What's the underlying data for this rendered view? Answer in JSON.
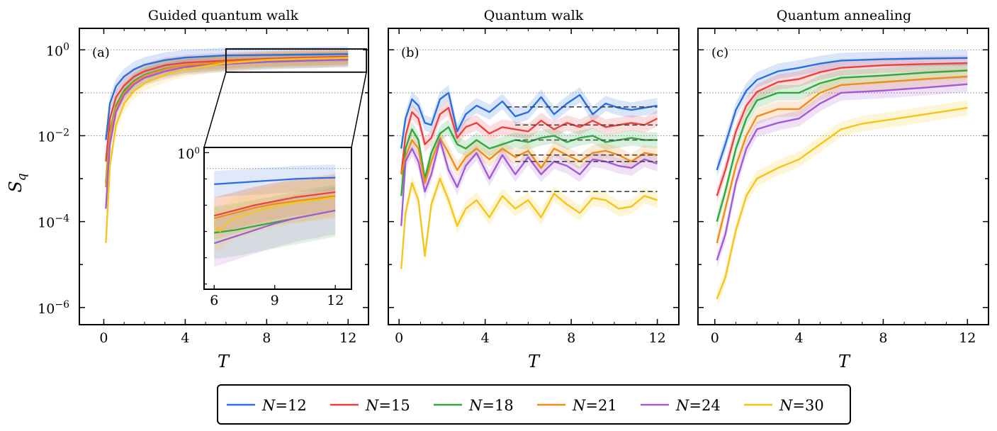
{
  "chart_data": [
    {
      "type": "line",
      "panel": "(a)",
      "title": "Guided quantum walk",
      "xlabel": "T",
      "ylabel": "S_q",
      "yscale": "log",
      "xlim": [
        -1.2,
        13
      ],
      "ylim_log10": [
        -6.4,
        0.5
      ],
      "xticks": [
        0,
        4,
        8,
        12
      ],
      "yticks": [
        {
          "base": "10",
          "exp": "0"
        },
        {
          "base": "10",
          "exp": "−2"
        },
        {
          "base": "10",
          "exp": "−4"
        },
        {
          "base": "10",
          "exp": "−6"
        }
      ],
      "reference_lines_log10": [
        0,
        -1,
        -2
      ],
      "series": [
        {
          "name": "N=12",
          "x": [
            0.1,
            0.3,
            0.6,
            1,
            1.5,
            2,
            3,
            4,
            6,
            8,
            10,
            12
          ],
          "log10y": [
            -2.1,
            -1.25,
            -0.85,
            -0.62,
            -0.45,
            -0.35,
            -0.24,
            -0.18,
            -0.13,
            -0.12,
            -0.11,
            -0.1
          ]
        },
        {
          "name": "N=15",
          "x": [
            0.1,
            0.3,
            0.6,
            1,
            1.5,
            2,
            3,
            4,
            6,
            8,
            10,
            12
          ],
          "log10y": [
            -2.6,
            -1.6,
            -1.1,
            -0.83,
            -0.62,
            -0.5,
            -0.36,
            -0.3,
            -0.25,
            -0.21,
            -0.18,
            -0.16
          ]
        },
        {
          "name": "N=18",
          "x": [
            0.1,
            0.3,
            0.6,
            1,
            1.5,
            2,
            3,
            4,
            6,
            8,
            10,
            12
          ],
          "log10y": [
            -3.1,
            -1.9,
            -1.3,
            -0.95,
            -0.72,
            -0.58,
            -0.44,
            -0.36,
            -0.3,
            -0.26,
            -0.24,
            -0.21
          ]
        },
        {
          "name": "N=21",
          "x": [
            0.1,
            0.3,
            0.6,
            1,
            1.5,
            2,
            3,
            4,
            6,
            8,
            10,
            12
          ],
          "log10y": [
            -3.2,
            -1.95,
            -1.35,
            -1.0,
            -0.75,
            -0.6,
            -0.45,
            -0.36,
            -0.28,
            -0.23,
            -0.2,
            -0.18
          ]
        },
        {
          "name": "N=24",
          "x": [
            0.1,
            0.3,
            0.6,
            1,
            1.5,
            2,
            3,
            4,
            6,
            8,
            10,
            12
          ],
          "log10y": [
            -3.7,
            -2.2,
            -1.45,
            -1.05,
            -0.8,
            -0.65,
            -0.5,
            -0.4,
            -0.33,
            -0.28,
            -0.25,
            -0.23
          ]
        },
        {
          "name": "N=30",
          "x": [
            0.1,
            0.3,
            0.6,
            1,
            1.5,
            2,
            3,
            4,
            6,
            8,
            10,
            12
          ],
          "log10y": [
            -4.5,
            -2.7,
            -1.75,
            -1.25,
            -0.95,
            -0.78,
            -0.58,
            -0.45,
            -0.31,
            -0.24,
            -0.21,
            -0.19
          ]
        }
      ],
      "inset": {
        "xlim": [
          5.5,
          12.8
        ],
        "ylim_log10": [
          -0.52,
          0.02
        ],
        "xticks": [
          6,
          9,
          12
        ],
        "ytick": {
          "base": "10",
          "exp": "0"
        },
        "series": [
          {
            "name": "N=12",
            "x": [
              6,
              7,
              8,
              9,
              10,
              11,
              12
            ],
            "log10y": [
              -0.12,
              -0.115,
              -0.11,
              -0.105,
              -0.1,
              -0.097,
              -0.095
            ]
          },
          {
            "name": "N=15",
            "x": [
              6,
              7,
              8,
              9,
              10,
              11,
              12
            ],
            "log10y": [
              -0.24,
              -0.22,
              -0.2,
              -0.185,
              -0.17,
              -0.16,
              -0.15
            ]
          },
          {
            "name": "N=18",
            "x": [
              6,
              6.5,
              7,
              8,
              9,
              10,
              11,
              12
            ],
            "log10y": [
              -0.305,
              -0.3,
              -0.295,
              -0.28,
              -0.265,
              -0.25,
              -0.235,
              -0.22
            ]
          },
          {
            "name": "N=21",
            "x": [
              6,
              7,
              8,
              9,
              10,
              11,
              12
            ],
            "log10y": [
              -0.25,
              -0.23,
              -0.21,
              -0.195,
              -0.185,
              -0.175,
              -0.165
            ]
          },
          {
            "name": "N=24",
            "x": [
              6,
              7,
              8,
              9,
              10,
              11,
              12
            ],
            "log10y": [
              -0.345,
              -0.32,
              -0.295,
              -0.27,
              -0.25,
              -0.235,
              -0.22
            ]
          },
          {
            "name": "N=30",
            "x": [
              6,
              6.3,
              6.6,
              7,
              8,
              9,
              10,
              11,
              12
            ],
            "log10y": [
              -0.28,
              -0.3,
              -0.27,
              -0.25,
              -0.225,
              -0.205,
              -0.19,
              -0.18,
              -0.17
            ]
          }
        ]
      }
    },
    {
      "type": "line",
      "panel": "(b)",
      "title": "Quantum walk",
      "xlabel": "T",
      "yscale": "log",
      "xlim": [
        -0.5,
        13
      ],
      "ylim_log10": [
        -6.4,
        0.5
      ],
      "xticks": [
        0,
        4,
        8,
        12
      ],
      "reference_lines_log10": [
        0,
        -1,
        -2
      ],
      "series": [
        {
          "name": "N=12",
          "x": [
            0.1,
            0.3,
            0.6,
            0.9,
            1.2,
            1.5,
            1.9,
            2.3,
            2.7,
            3.1,
            3.6,
            4.2,
            4.8,
            5.4,
            6,
            6.6,
            7.2,
            7.8,
            8.4,
            9,
            9.6,
            10.2,
            10.8,
            11.4,
            12
          ],
          "log10y": [
            -2.3,
            -1.6,
            -1.15,
            -1.3,
            -1.7,
            -1.75,
            -1.15,
            -1.0,
            -1.9,
            -1.5,
            -1.3,
            -1.45,
            -1.2,
            -1.55,
            -1.45,
            -1.1,
            -1.5,
            -1.25,
            -1.05,
            -1.5,
            -1.25,
            -1.35,
            -1.4,
            -1.35,
            -1.3
          ]
        },
        {
          "name": "N=15",
          "x": [
            0.1,
            0.3,
            0.6,
            0.9,
            1.2,
            1.5,
            1.9,
            2.3,
            2.7,
            3.1,
            3.6,
            4.2,
            4.8,
            5.4,
            6,
            6.6,
            7.2,
            7.8,
            8.4,
            9,
            9.6,
            10.2,
            10.8,
            11.4,
            12
          ],
          "log10y": [
            -2.9,
            -2.0,
            -1.45,
            -1.6,
            -2.2,
            -2.05,
            -1.5,
            -1.35,
            -2.05,
            -1.8,
            -1.7,
            -1.95,
            -1.8,
            -1.85,
            -1.9,
            -1.65,
            -1.85,
            -1.7,
            -1.8,
            -1.65,
            -1.8,
            -1.75,
            -1.7,
            -1.75,
            -1.6
          ]
        },
        {
          "name": "N=18",
          "x": [
            0.1,
            0.3,
            0.6,
            0.9,
            1.2,
            1.5,
            1.9,
            2.3,
            2.7,
            3.1,
            3.6,
            4.2,
            4.8,
            5.4,
            6,
            6.6,
            7.2,
            7.8,
            8.4,
            9,
            9.6,
            10.2,
            10.8,
            11.4,
            12
          ],
          "log10y": [
            -3.4,
            -2.3,
            -1.85,
            -2.1,
            -3.0,
            -2.4,
            -1.95,
            -1.8,
            -2.2,
            -2.3,
            -2.1,
            -2.3,
            -2.2,
            -2.1,
            -2.15,
            -2.05,
            -2.0,
            -2.15,
            -2.05,
            -2.0,
            -2.15,
            -2.1,
            -2.05,
            -2.1,
            -2.1
          ]
        },
        {
          "name": "N=21",
          "x": [
            0.1,
            0.3,
            0.6,
            0.9,
            1.2,
            1.5,
            1.9,
            2.3,
            2.7,
            3.1,
            3.6,
            4.2,
            4.8,
            5.4,
            6,
            6.6,
            7.2,
            7.8,
            8.4,
            9,
            9.6,
            10.2,
            10.8,
            11.4,
            12
          ],
          "log10y": [
            -2.9,
            -2.5,
            -2.1,
            -2.3,
            -3.1,
            -2.6,
            -2.05,
            -2.4,
            -2.8,
            -2.5,
            -2.3,
            -2.55,
            -2.3,
            -2.5,
            -2.35,
            -2.75,
            -2.3,
            -2.45,
            -2.6,
            -2.4,
            -2.35,
            -2.45,
            -2.6,
            -2.4,
            -2.45
          ]
        },
        {
          "name": "N=24",
          "x": [
            0.1,
            0.3,
            0.6,
            0.9,
            1.2,
            1.5,
            1.9,
            2.3,
            2.7,
            3.1,
            3.6,
            4.2,
            4.8,
            5.4,
            6,
            6.6,
            7.2,
            7.8,
            8.4,
            9,
            9.6,
            10.2,
            10.8,
            11.4,
            12
          ],
          "log10y": [
            -4.1,
            -2.6,
            -2.3,
            -2.6,
            -3.3,
            -2.9,
            -2.1,
            -2.8,
            -3.2,
            -2.7,
            -2.4,
            -3.0,
            -2.45,
            -2.9,
            -2.5,
            -2.9,
            -2.6,
            -2.7,
            -2.9,
            -2.55,
            -2.6,
            -2.7,
            -2.75,
            -2.55,
            -2.65
          ]
        },
        {
          "name": "N=30",
          "x": [
            0.1,
            0.3,
            0.6,
            0.9,
            1.2,
            1.5,
            1.9,
            2.3,
            2.7,
            3.1,
            3.6,
            4.2,
            4.8,
            5.4,
            6,
            6.6,
            7.2,
            7.8,
            8.4,
            9,
            9.6,
            10.2,
            10.8,
            11.4,
            12
          ],
          "log10y": [
            -5.1,
            -3.8,
            -3.1,
            -3.5,
            -4.8,
            -3.6,
            -3.0,
            -3.5,
            -4.1,
            -3.7,
            -3.5,
            -3.9,
            -3.4,
            -3.7,
            -3.5,
            -3.9,
            -3.35,
            -3.6,
            -3.8,
            -3.45,
            -3.5,
            -3.7,
            -3.65,
            -3.4,
            -3.5
          ]
        }
      ],
      "dashed_averages": [
        {
          "name": "N=12",
          "x0": 5,
          "x1": 12,
          "log10y": -1.33
        },
        {
          "name": "N=15",
          "x0": 5.4,
          "x1": 12,
          "log10y": -1.75
        },
        {
          "name": "N=18",
          "x0": 5.4,
          "x1": 12,
          "log10y": -2.1
        },
        {
          "name": "N=21",
          "x0": 5.4,
          "x1": 12,
          "log10y": -2.45
        },
        {
          "name": "N=24",
          "x0": 5.4,
          "x1": 12,
          "log10y": -2.6
        },
        {
          "name": "N=30",
          "x0": 5.4,
          "x1": 12,
          "log10y": -3.3
        }
      ]
    },
    {
      "type": "line",
      "panel": "(c)",
      "title": "Quantum annealing",
      "xlabel": "T",
      "yscale": "log",
      "xlim": [
        -0.8,
        13
      ],
      "ylim_log10": [
        -6.4,
        0.5
      ],
      "xticks": [
        0,
        4,
        8,
        12
      ],
      "reference_lines_log10": [
        0,
        -1,
        -2
      ],
      "series": [
        {
          "name": "N=12",
          "x": [
            0.1,
            0.5,
            1,
            1.5,
            2,
            3,
            4,
            5,
            6,
            8,
            10,
            12
          ],
          "log10y": [
            -2.8,
            -2.2,
            -1.4,
            -0.95,
            -0.7,
            -0.5,
            -0.42,
            -0.32,
            -0.25,
            -0.22,
            -0.2,
            -0.19
          ]
        },
        {
          "name": "N=15",
          "x": [
            0.1,
            0.5,
            1,
            1.5,
            2,
            3,
            4,
            5,
            6,
            8,
            10,
            12
          ],
          "log10y": [
            -3.4,
            -2.8,
            -1.9,
            -1.3,
            -0.98,
            -0.75,
            -0.68,
            -0.52,
            -0.42,
            -0.36,
            -0.33,
            -0.31
          ]
        },
        {
          "name": "N=18",
          "x": [
            0.1,
            0.5,
            1,
            1.5,
            2,
            3,
            4,
            5,
            6,
            8,
            10,
            12
          ],
          "log10y": [
            -4.0,
            -3.3,
            -2.3,
            -1.6,
            -1.18,
            -1.0,
            -1.0,
            -0.78,
            -0.65,
            -0.6,
            -0.53,
            -0.48
          ]
        },
        {
          "name": "N=21",
          "x": [
            0.1,
            0.5,
            1,
            1.5,
            2,
            3,
            4,
            5,
            6,
            8,
            10,
            12
          ],
          "log10y": [
            -4.5,
            -3.7,
            -2.7,
            -2.0,
            -1.55,
            -1.38,
            -1.38,
            -1.0,
            -0.82,
            -0.75,
            -0.68,
            -0.62
          ]
        },
        {
          "name": "N=24",
          "x": [
            0.1,
            0.5,
            1,
            1.5,
            2,
            3,
            4,
            5,
            6,
            8,
            10,
            12
          ],
          "log10y": [
            -4.9,
            -4.3,
            -3.1,
            -2.3,
            -1.85,
            -1.7,
            -1.6,
            -1.25,
            -1.0,
            -0.95,
            -0.88,
            -0.8
          ]
        },
        {
          "name": "N=30",
          "x": [
            0.1,
            0.5,
            1,
            1.5,
            2,
            3,
            4,
            5,
            6,
            7,
            8,
            10,
            12
          ],
          "log10y": [
            -5.8,
            -5.3,
            -4.2,
            -3.4,
            -3.0,
            -2.75,
            -2.55,
            -2.2,
            -1.85,
            -1.72,
            -1.65,
            -1.5,
            -1.35
          ]
        }
      ]
    }
  ],
  "series_colors": {
    "N=12": "#2b6ee0",
    "N=15": "#ee4040",
    "N=18": "#2fa842",
    "N=21": "#f08c1a",
    "N=24": "#a35ad6",
    "N=30": "#f5c519"
  },
  "legend": [
    {
      "var": "N",
      "op": "=",
      "num": "12"
    },
    {
      "var": "N",
      "op": "=",
      "num": "15"
    },
    {
      "var": "N",
      "op": "=",
      "num": "18"
    },
    {
      "var": "N",
      "op": "=",
      "num": "21"
    },
    {
      "var": "N",
      "op": "=",
      "num": "24"
    },
    {
      "var": "N",
      "op": "=",
      "num": "30"
    }
  ],
  "ylabel_main": "S",
  "ylabel_sub": "q"
}
